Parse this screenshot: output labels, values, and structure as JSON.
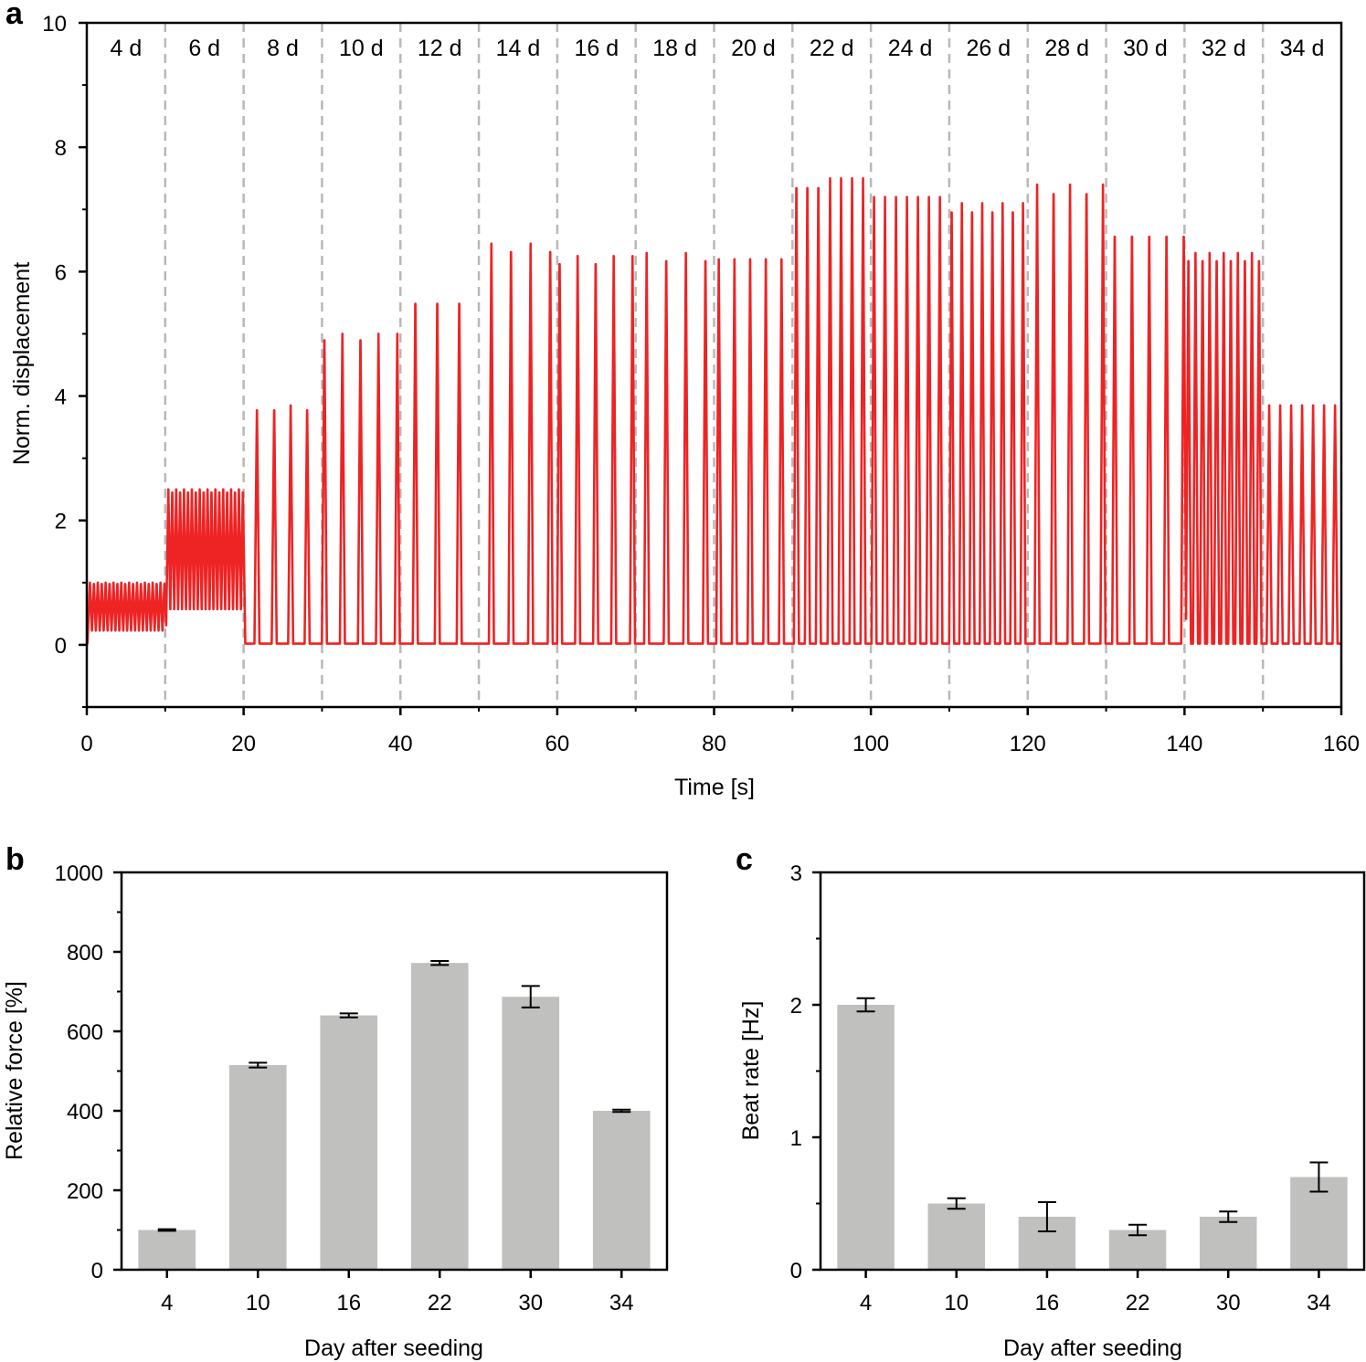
{
  "panel_letters": {
    "a": "a",
    "b": "b",
    "c": "c"
  },
  "colors": {
    "trace": "#ee2324",
    "bar": "#c0c0bf",
    "divider": "#b8b8b8",
    "axis": "#000000"
  },
  "chart_data": [
    {
      "id": "a",
      "type": "line",
      "title": "",
      "xlabel": "Time [s]",
      "ylabel": "Norm. displacement",
      "xlim": [
        0,
        160
      ],
      "ylim": [
        -1,
        10
      ],
      "xticks": [
        0,
        20,
        40,
        60,
        80,
        100,
        120,
        140,
        160
      ],
      "xtick_labels": [
        "0",
        "20",
        "40",
        "60",
        "80",
        "100",
        "120",
        "140",
        "160"
      ],
      "yticks": [
        0,
        2,
        4,
        6,
        8,
        10
      ],
      "ytick_labels": [
        "0",
        "2",
        "4",
        "6",
        "8",
        "10"
      ],
      "dividers": [
        10,
        20,
        30,
        40,
        50,
        60,
        70,
        80,
        90,
        100,
        110,
        120,
        130,
        140,
        150
      ],
      "segments": [
        {
          "label": "4 d",
          "start": 0,
          "end": 10,
          "amplitude": 1.0,
          "peaks": [
            0.4,
            0.9,
            1.4,
            1.9,
            2.4,
            2.9,
            3.4,
            3.9,
            4.4,
            4.9,
            5.4,
            5.9,
            6.4,
            6.9,
            7.4,
            7.9,
            8.4,
            8.9,
            9.4,
            9.9
          ]
        },
        {
          "label": "6 d",
          "start": 10,
          "end": 20,
          "amplitude": 2.5,
          "peaks": [
            10.4,
            10.9,
            11.4,
            11.9,
            12.4,
            12.9,
            13.4,
            13.9,
            14.4,
            14.9,
            15.4,
            15.9,
            16.4,
            16.9,
            17.4,
            17.9,
            18.4,
            18.9,
            19.4,
            19.9
          ]
        },
        {
          "label": "8 d",
          "start": 20,
          "end": 30,
          "amplitude": 3.85,
          "peaks": [
            21.7,
            23.9,
            26.0,
            28.1
          ]
        },
        {
          "label": "10 d",
          "start": 30,
          "end": 40,
          "amplitude": 5.0,
          "peaks": [
            30.3,
            32.6,
            34.9,
            37.2,
            39.6
          ]
        },
        {
          "label": "12 d",
          "start": 40,
          "end": 50,
          "amplitude": 5.6,
          "peaks": [
            41.9,
            44.7,
            47.5
          ]
        },
        {
          "label": "14 d",
          "start": 50,
          "end": 60,
          "amplitude": 6.45,
          "peaks": [
            51.6,
            54.1,
            56.6,
            59.1
          ]
        },
        {
          "label": "16 d",
          "start": 60,
          "end": 70,
          "amplitude": 6.25,
          "peaks": [
            60.3,
            62.6,
            64.9,
            67.2,
            69.6
          ]
        },
        {
          "label": "18 d",
          "start": 70,
          "end": 80,
          "amplitude": 6.3,
          "peaks": [
            71.4,
            73.9,
            76.4,
            78.9
          ]
        },
        {
          "label": "20 d",
          "start": 80,
          "end": 90,
          "amplitude": 6.2,
          "peaks": [
            80.6,
            82.6,
            84.6,
            86.6,
            88.6
          ]
        },
        {
          "label": "22 d",
          "start": 90,
          "end": 100,
          "amplitude": 7.5,
          "peaks": [
            90.5,
            91.9,
            93.3,
            94.8,
            96.2,
            97.6,
            99.0
          ]
        },
        {
          "label": "24 d",
          "start": 100,
          "end": 110,
          "amplitude": 7.2,
          "peaks": [
            100.4,
            101.8,
            103.2,
            104.6,
            106.0,
            107.4,
            108.8
          ]
        },
        {
          "label": "26 d",
          "start": 110,
          "end": 120,
          "amplitude": 7.1,
          "peaks": [
            110.3,
            111.6,
            112.9,
            114.2,
            115.5,
            116.8,
            118.1,
            119.4
          ]
        },
        {
          "label": "28 d",
          "start": 120,
          "end": 130,
          "amplitude": 7.4,
          "peaks": [
            121.2,
            123.3,
            125.4,
            127.5,
            129.6
          ]
        },
        {
          "label": "30 d",
          "start": 130,
          "end": 140,
          "amplitude": 6.7,
          "peaks": [
            131.1,
            133.3,
            135.5,
            137.7,
            139.9
          ]
        },
        {
          "label": "32 d",
          "start": 140,
          "end": 150,
          "amplitude": 6.3,
          "peaks": [
            140.5,
            141.4,
            142.3,
            143.2,
            144.1,
            145.0,
            145.9,
            146.8,
            147.7,
            148.6,
            149.5
          ]
        },
        {
          "label": "34 d",
          "start": 150,
          "end": 160,
          "amplitude": 3.85,
          "peaks": [
            150.8,
            152.2,
            153.6,
            155.0,
            156.4,
            157.8,
            159.2
          ]
        }
      ]
    },
    {
      "id": "b",
      "type": "bar",
      "title": "",
      "xlabel": "Day after seeding",
      "ylabel": "Relative force [%]",
      "categories": [
        "4",
        "10",
        "16",
        "22",
        "30",
        "34"
      ],
      "values": [
        100,
        515,
        640,
        772,
        687,
        400
      ],
      "errors": [
        2,
        6,
        5,
        5,
        27,
        3
      ],
      "ylim": [
        0,
        1000
      ],
      "yticks": [
        0,
        200,
        400,
        600,
        800,
        1000
      ],
      "ytick_labels": [
        "0",
        "200",
        "400",
        "600",
        "800",
        "1000"
      ]
    },
    {
      "id": "c",
      "type": "bar",
      "title": "",
      "xlabel": "Day after seeding",
      "ylabel": "Beat rate [Hz]",
      "categories": [
        "4",
        "10",
        "16",
        "22",
        "30",
        "34"
      ],
      "values": [
        2.0,
        0.5,
        0.4,
        0.3,
        0.4,
        0.7
      ],
      "errors": [
        0.05,
        0.04,
        0.11,
        0.04,
        0.04,
        0.11
      ],
      "ylim": [
        0,
        3
      ],
      "yticks": [
        0,
        1,
        2,
        3
      ],
      "ytick_labels": [
        "0",
        "1",
        "2",
        "3"
      ]
    }
  ]
}
